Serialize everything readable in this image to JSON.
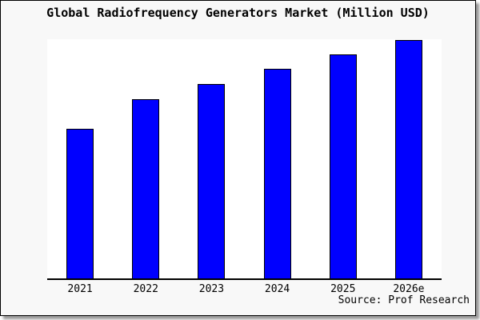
{
  "window": {
    "background_color": "#f8f8f8",
    "border_color": "#000000",
    "shadow_color": "#999999"
  },
  "chart_data": {
    "type": "bar",
    "title": "Global Radiofrequency Generators Market (Million USD)",
    "categories": [
      "2021",
      "2022",
      "2023",
      "2024",
      "2025",
      "2026e"
    ],
    "values": [
      62.7,
      75.0,
      81.3,
      87.7,
      93.7,
      99.7
    ],
    "ylim": [
      0,
      100
    ],
    "xlabel": "",
    "ylabel": "",
    "yaxis_visible": false,
    "gridlines": false,
    "legend": false,
    "plot_background": "#ffffff",
    "bar_color": "#0000ff",
    "bar_border_color": "#000000",
    "axis_color": "#000000",
    "source_note": "Source: Prof Research"
  }
}
